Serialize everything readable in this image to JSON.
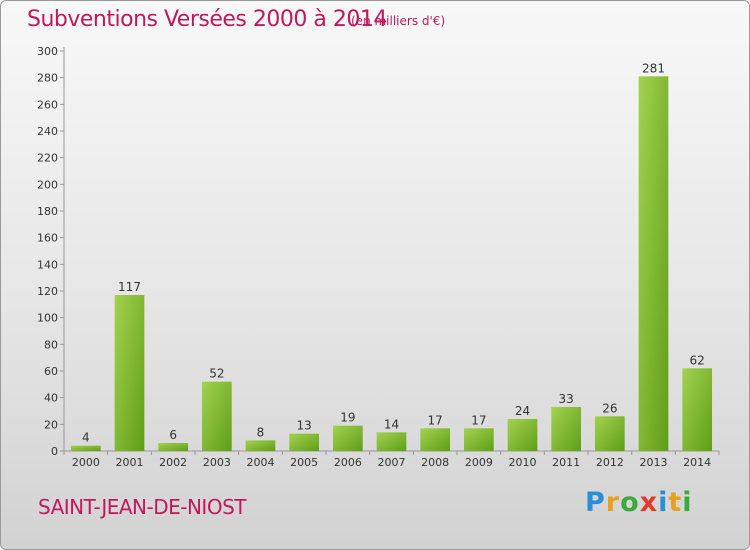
{
  "header": {
    "title": "Subventions Versées 2000 à 2014",
    "unit": "(en milliers d'€)"
  },
  "footer": {
    "commune": "SAINT-JEAN-DE-NIOST",
    "logo_letters": [
      "P",
      "r",
      "o",
      "x",
      "i",
      "t",
      "i"
    ],
    "logo_colors": [
      "#2a8fd6",
      "#e9a01e",
      "#3da83d",
      "#e23a2c",
      "#2a8fd6",
      "#e9a01e",
      "#3da83d"
    ]
  },
  "colors": {
    "text_accent": "#c2185b",
    "bar_light": "#a3d24f",
    "bar_dark": "#5f9e18"
  },
  "chart_data": {
    "type": "bar",
    "title": "Subventions Versées 2000 à 2014",
    "subtitle": "(en milliers d'€)",
    "categories": [
      "2000",
      "2001",
      "2002",
      "2003",
      "2004",
      "2005",
      "2006",
      "2007",
      "2008",
      "2009",
      "2010",
      "2011",
      "2012",
      "2013",
      "2014"
    ],
    "values": [
      4,
      117,
      6,
      52,
      8,
      13,
      19,
      14,
      17,
      17,
      24,
      33,
      26,
      281,
      62
    ],
    "ylim": [
      0,
      300
    ],
    "yticks": [
      0,
      20,
      40,
      60,
      80,
      100,
      120,
      140,
      160,
      180,
      200,
      220,
      240,
      260,
      280,
      300
    ],
    "grid": false,
    "legend": "none"
  }
}
